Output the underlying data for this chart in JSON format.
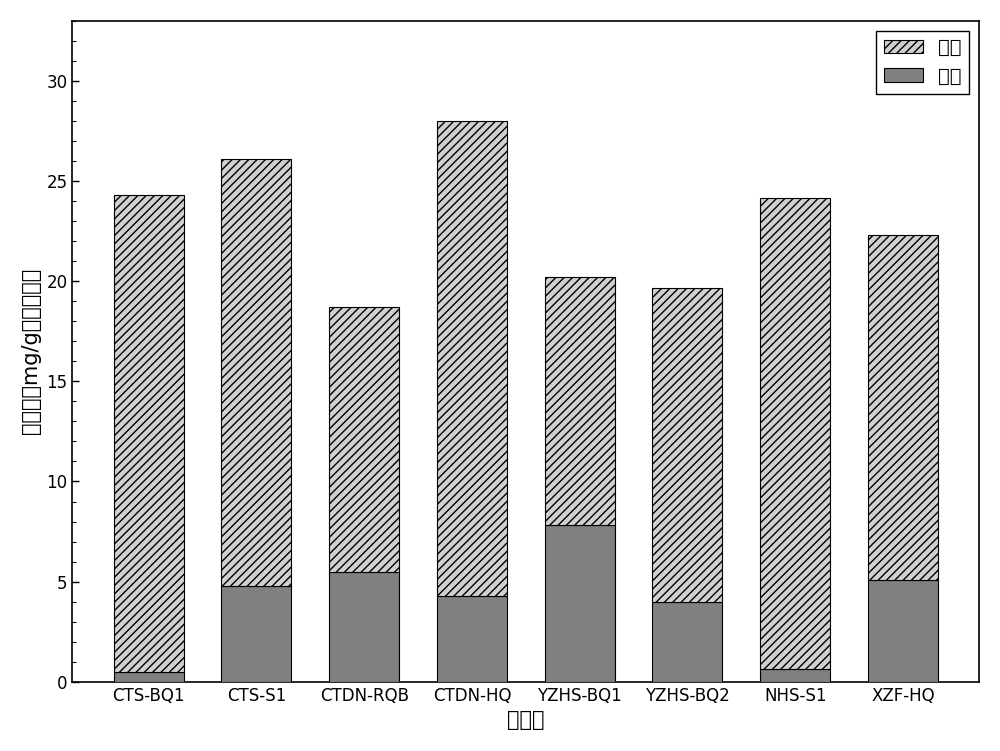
{
  "categories": [
    "CTS-BQ1",
    "CTS-S1",
    "CTDN-RQB",
    "CTDN-HQ",
    "YZHS-BQ1",
    "YZHS-BQ2",
    "NHS-S1",
    "XZF-HQ"
  ],
  "produce_sugar": [
    23.8,
    21.3,
    13.2,
    23.7,
    12.35,
    15.65,
    23.5,
    17.2
  ],
  "consume_sugar": [
    0.5,
    4.8,
    5.5,
    4.3,
    7.85,
    4.0,
    0.65,
    5.1
  ],
  "hatch_produce": "////",
  "color_produce": "#d0d0d0",
  "color_consume": "#808080",
  "edgecolor": "#000000",
  "ylabel": "糖含量（mg/g原料干基）",
  "xlabel": "预处理",
  "legend_produce": "产糖",
  "legend_consume": "耗糖",
  "ylim": [
    0,
    33
  ],
  "yticks": [
    0,
    5,
    10,
    15,
    20,
    25,
    30
  ],
  "bar_width": 0.65,
  "background_color": "#ffffff",
  "label_fontsize": 15,
  "tick_fontsize": 12,
  "legend_fontsize": 14
}
